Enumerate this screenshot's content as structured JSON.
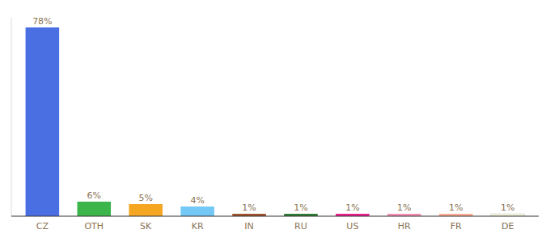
{
  "chart_data": {
    "type": "bar",
    "categories": [
      "CZ",
      "OTH",
      "SK",
      "KR",
      "IN",
      "RU",
      "US",
      "HR",
      "FR",
      "DE"
    ],
    "values": [
      78,
      6,
      5,
      4,
      1,
      1,
      1,
      1,
      1,
      1
    ],
    "value_labels": [
      "78%",
      "6%",
      "5%",
      "4%",
      "1%",
      "1%",
      "1%",
      "1%",
      "1%",
      "1%"
    ],
    "colors": [
      "#4A6FE3",
      "#3CB54A",
      "#F5A623",
      "#73C8F5",
      "#A0522D",
      "#2E7D32",
      "#E91E8C",
      "#F48FB1",
      "#FFAB91",
      "#F5F5DC"
    ],
    "ylim": [
      0,
      82
    ],
    "data_labels": true,
    "tick_labels": "x",
    "grid": false
  }
}
